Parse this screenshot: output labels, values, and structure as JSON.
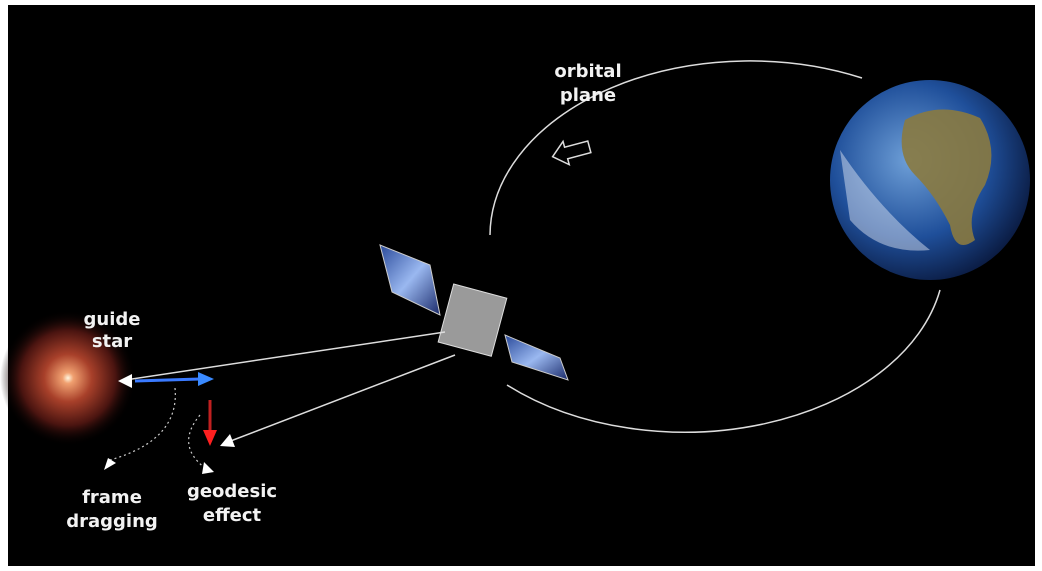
{
  "labels": {
    "orbital_plane": [
      "orbital",
      "plane"
    ],
    "guide_star": [
      "guide",
      "star"
    ],
    "frame_dragging": [
      "frame",
      "dragging"
    ],
    "geodesic_effect": [
      "geodesic",
      "effect"
    ]
  }
}
